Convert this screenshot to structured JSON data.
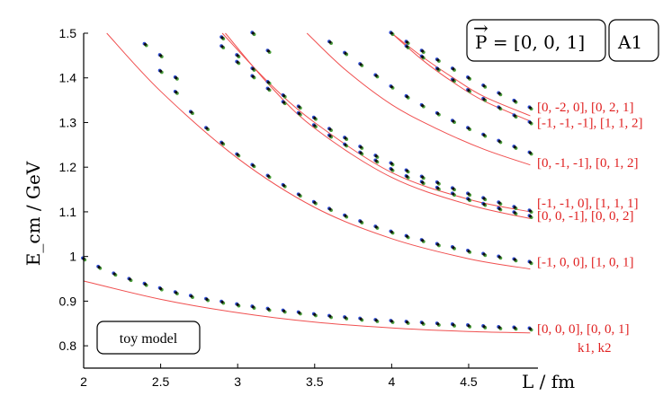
{
  "chart_data": {
    "type": "scatter",
    "title": "",
    "xlabel": "L / fm",
    "ylabel": "E_cm / GeV",
    "xlim": [
      2.0,
      4.95
    ],
    "ylim": [
      0.75,
      1.5
    ],
    "xticks": [
      "2",
      "2.5",
      "3",
      "3.5",
      "4",
      "4.5"
    ],
    "yticks": [
      "0.8",
      "0.9",
      "1",
      "1.1",
      "1.2",
      "1.3",
      "1.4",
      "1.5"
    ],
    "box_label": "P = [0, 0, 1]",
    "box_symbol": "→",
    "irrep_label": "A1",
    "annotation": "toy model",
    "levels_label": "k1, k2",
    "level_labels": [
      {
        "text": "[0, 0, 0],  [0, 0, 1]",
        "y": 0.838
      },
      {
        "text": "[-1, 0, 0],  [1, 0, 1]",
        "y": 0.988
      },
      {
        "text": "[0, 0, -1],  [0, 0, 2]",
        "y": 1.092
      },
      {
        "text": "[-1, -1, 0],  [1, 1, 1]",
        "y": 1.12
      },
      {
        "text": "[0, -1, -1],  [0, 1, 2]",
        "y": 1.21
      },
      {
        "text": "[-1, -1, -1],  [1, 1, 2]",
        "y": 1.3
      },
      {
        "text": "[0, -2, 0],  [0, 2, 1]",
        "y": 1.335
      }
    ],
    "curves": [
      {
        "x": [
          2.0,
          2.5,
          3.0,
          3.5,
          4.0,
          4.5,
          4.9
        ],
        "y": [
          0.945,
          0.904,
          0.874,
          0.853,
          0.84,
          0.832,
          0.829
        ]
      },
      {
        "x": [
          2.15,
          2.5,
          3.0,
          3.5,
          4.0,
          4.5,
          4.9
        ],
        "y": [
          1.5,
          1.37,
          1.22,
          1.11,
          1.04,
          0.995,
          0.972
        ]
      },
      {
        "x": [
          2.92,
          3.2,
          3.5,
          4.0,
          4.5,
          4.9
        ],
        "y": [
          1.5,
          1.386,
          1.287,
          1.177,
          1.116,
          1.085
        ]
      },
      {
        "x": [
          2.9,
          3.2,
          3.5,
          4.0,
          4.5,
          4.9
        ],
        "y": [
          1.5,
          1.39,
          1.3,
          1.188,
          1.128,
          1.1
        ]
      },
      {
        "x": [
          3.45,
          3.7,
          4.0,
          4.3,
          4.6,
          4.9
        ],
        "y": [
          1.5,
          1.418,
          1.34,
          1.285,
          1.24,
          1.205
        ]
      },
      {
        "x": [
          4.0,
          4.2,
          4.4,
          4.6,
          4.9
        ],
        "y": [
          1.5,
          1.44,
          1.39,
          1.348,
          1.303
        ]
      },
      {
        "x": [
          4.0,
          4.2,
          4.4,
          4.6,
          4.9
        ],
        "y": [
          1.5,
          1.447,
          1.4,
          1.358,
          1.315
        ]
      }
    ],
    "points": [
      {
        "x": [
          2.0,
          2.1,
          2.2,
          2.3,
          2.4,
          2.5,
          2.6,
          2.7,
          2.8,
          2.9,
          3.0,
          3.1,
          3.2,
          3.3,
          3.4,
          3.5,
          3.6,
          3.7,
          3.8,
          3.9,
          4.0,
          4.1,
          4.2,
          4.3,
          4.4,
          4.5,
          4.6,
          4.7,
          4.8,
          4.9
        ],
        "y": [
          0.995,
          0.976,
          0.961,
          0.949,
          0.938,
          0.928,
          0.919,
          0.911,
          0.904,
          0.898,
          0.892,
          0.887,
          0.882,
          0.878,
          0.874,
          0.87,
          0.866,
          0.863,
          0.86,
          0.857,
          0.855,
          0.853,
          0.851,
          0.849,
          0.847,
          0.845,
          0.843,
          0.841,
          0.84,
          0.838
        ]
      },
      {
        "x": [
          2.4,
          2.5,
          2.6,
          2.7,
          2.8,
          2.9,
          3.0,
          3.1,
          3.2,
          3.3,
          3.4,
          3.5,
          3.6,
          3.7,
          3.8,
          3.9,
          4.0,
          4.1,
          4.2,
          4.3,
          4.4,
          4.5,
          4.6,
          4.7,
          4.8,
          4.9
        ],
        "y": [
          1.475,
          1.415,
          1.368,
          1.323,
          1.287,
          1.254,
          1.228,
          1.204,
          1.18,
          1.159,
          1.138,
          1.121,
          1.106,
          1.091,
          1.078,
          1.066,
          1.055,
          1.045,
          1.036,
          1.027,
          1.02,
          1.012,
          1.005,
          0.999,
          0.993,
          0.987
        ]
      },
      {
        "x": [
          2.9,
          3.0,
          3.1,
          3.2,
          3.3,
          3.4,
          3.5,
          3.6,
          3.7,
          3.8,
          3.9,
          4.0,
          4.1,
          4.2,
          4.3,
          4.4,
          4.5,
          4.6,
          4.7,
          4.8,
          4.9
        ],
        "y": [
          1.47,
          1.435,
          1.403,
          1.375,
          1.345,
          1.32,
          1.293,
          1.27,
          1.25,
          1.232,
          1.214,
          1.195,
          1.179,
          1.166,
          1.153,
          1.14,
          1.128,
          1.117,
          1.107,
          1.098,
          1.09
        ]
      },
      {
        "x": [
          3.0,
          3.1,
          3.2,
          3.3,
          3.4,
          3.5,
          3.6,
          3.7,
          3.8,
          3.9,
          4.0,
          4.1,
          4.2,
          4.3,
          4.4,
          4.5,
          4.6,
          4.7,
          4.8,
          4.9
        ],
        "y": [
          1.45,
          1.42,
          1.39,
          1.36,
          1.335,
          1.31,
          1.285,
          1.265,
          1.245,
          1.225,
          1.208,
          1.192,
          1.178,
          1.165,
          1.152,
          1.14,
          1.13,
          1.12,
          1.11,
          1.102
        ]
      },
      {
        "x": [
          3.6,
          3.7,
          3.8,
          3.9,
          4.0,
          4.1,
          4.2,
          4.3,
          4.4,
          4.5,
          4.6,
          4.7,
          4.8,
          4.9
        ],
        "y": [
          1.48,
          1.455,
          1.43,
          1.405,
          1.38,
          1.358,
          1.338,
          1.32,
          1.303,
          1.287,
          1.272,
          1.258,
          1.245,
          1.232
        ]
      },
      {
        "x": [
          4.1,
          4.2,
          4.3,
          4.4,
          4.5,
          4.6,
          4.7,
          4.8,
          4.9
        ],
        "y": [
          1.48,
          1.46,
          1.44,
          1.42,
          1.4,
          1.382,
          1.365,
          1.348,
          1.333
        ]
      },
      {
        "x": [
          4.0,
          4.1,
          4.2,
          4.3,
          4.4,
          4.5,
          4.6,
          4.7,
          4.8,
          4.9
        ],
        "y": [
          1.5,
          1.47,
          1.447,
          1.42,
          1.395,
          1.372,
          1.352,
          1.333,
          1.315,
          1.3
        ]
      },
      {
        "x": [
          2.5,
          2.6,
          2.9,
          3.1,
          3.2
        ],
        "y": [
          1.45,
          1.4,
          1.49,
          1.5,
          1.46
        ]
      }
    ]
  }
}
